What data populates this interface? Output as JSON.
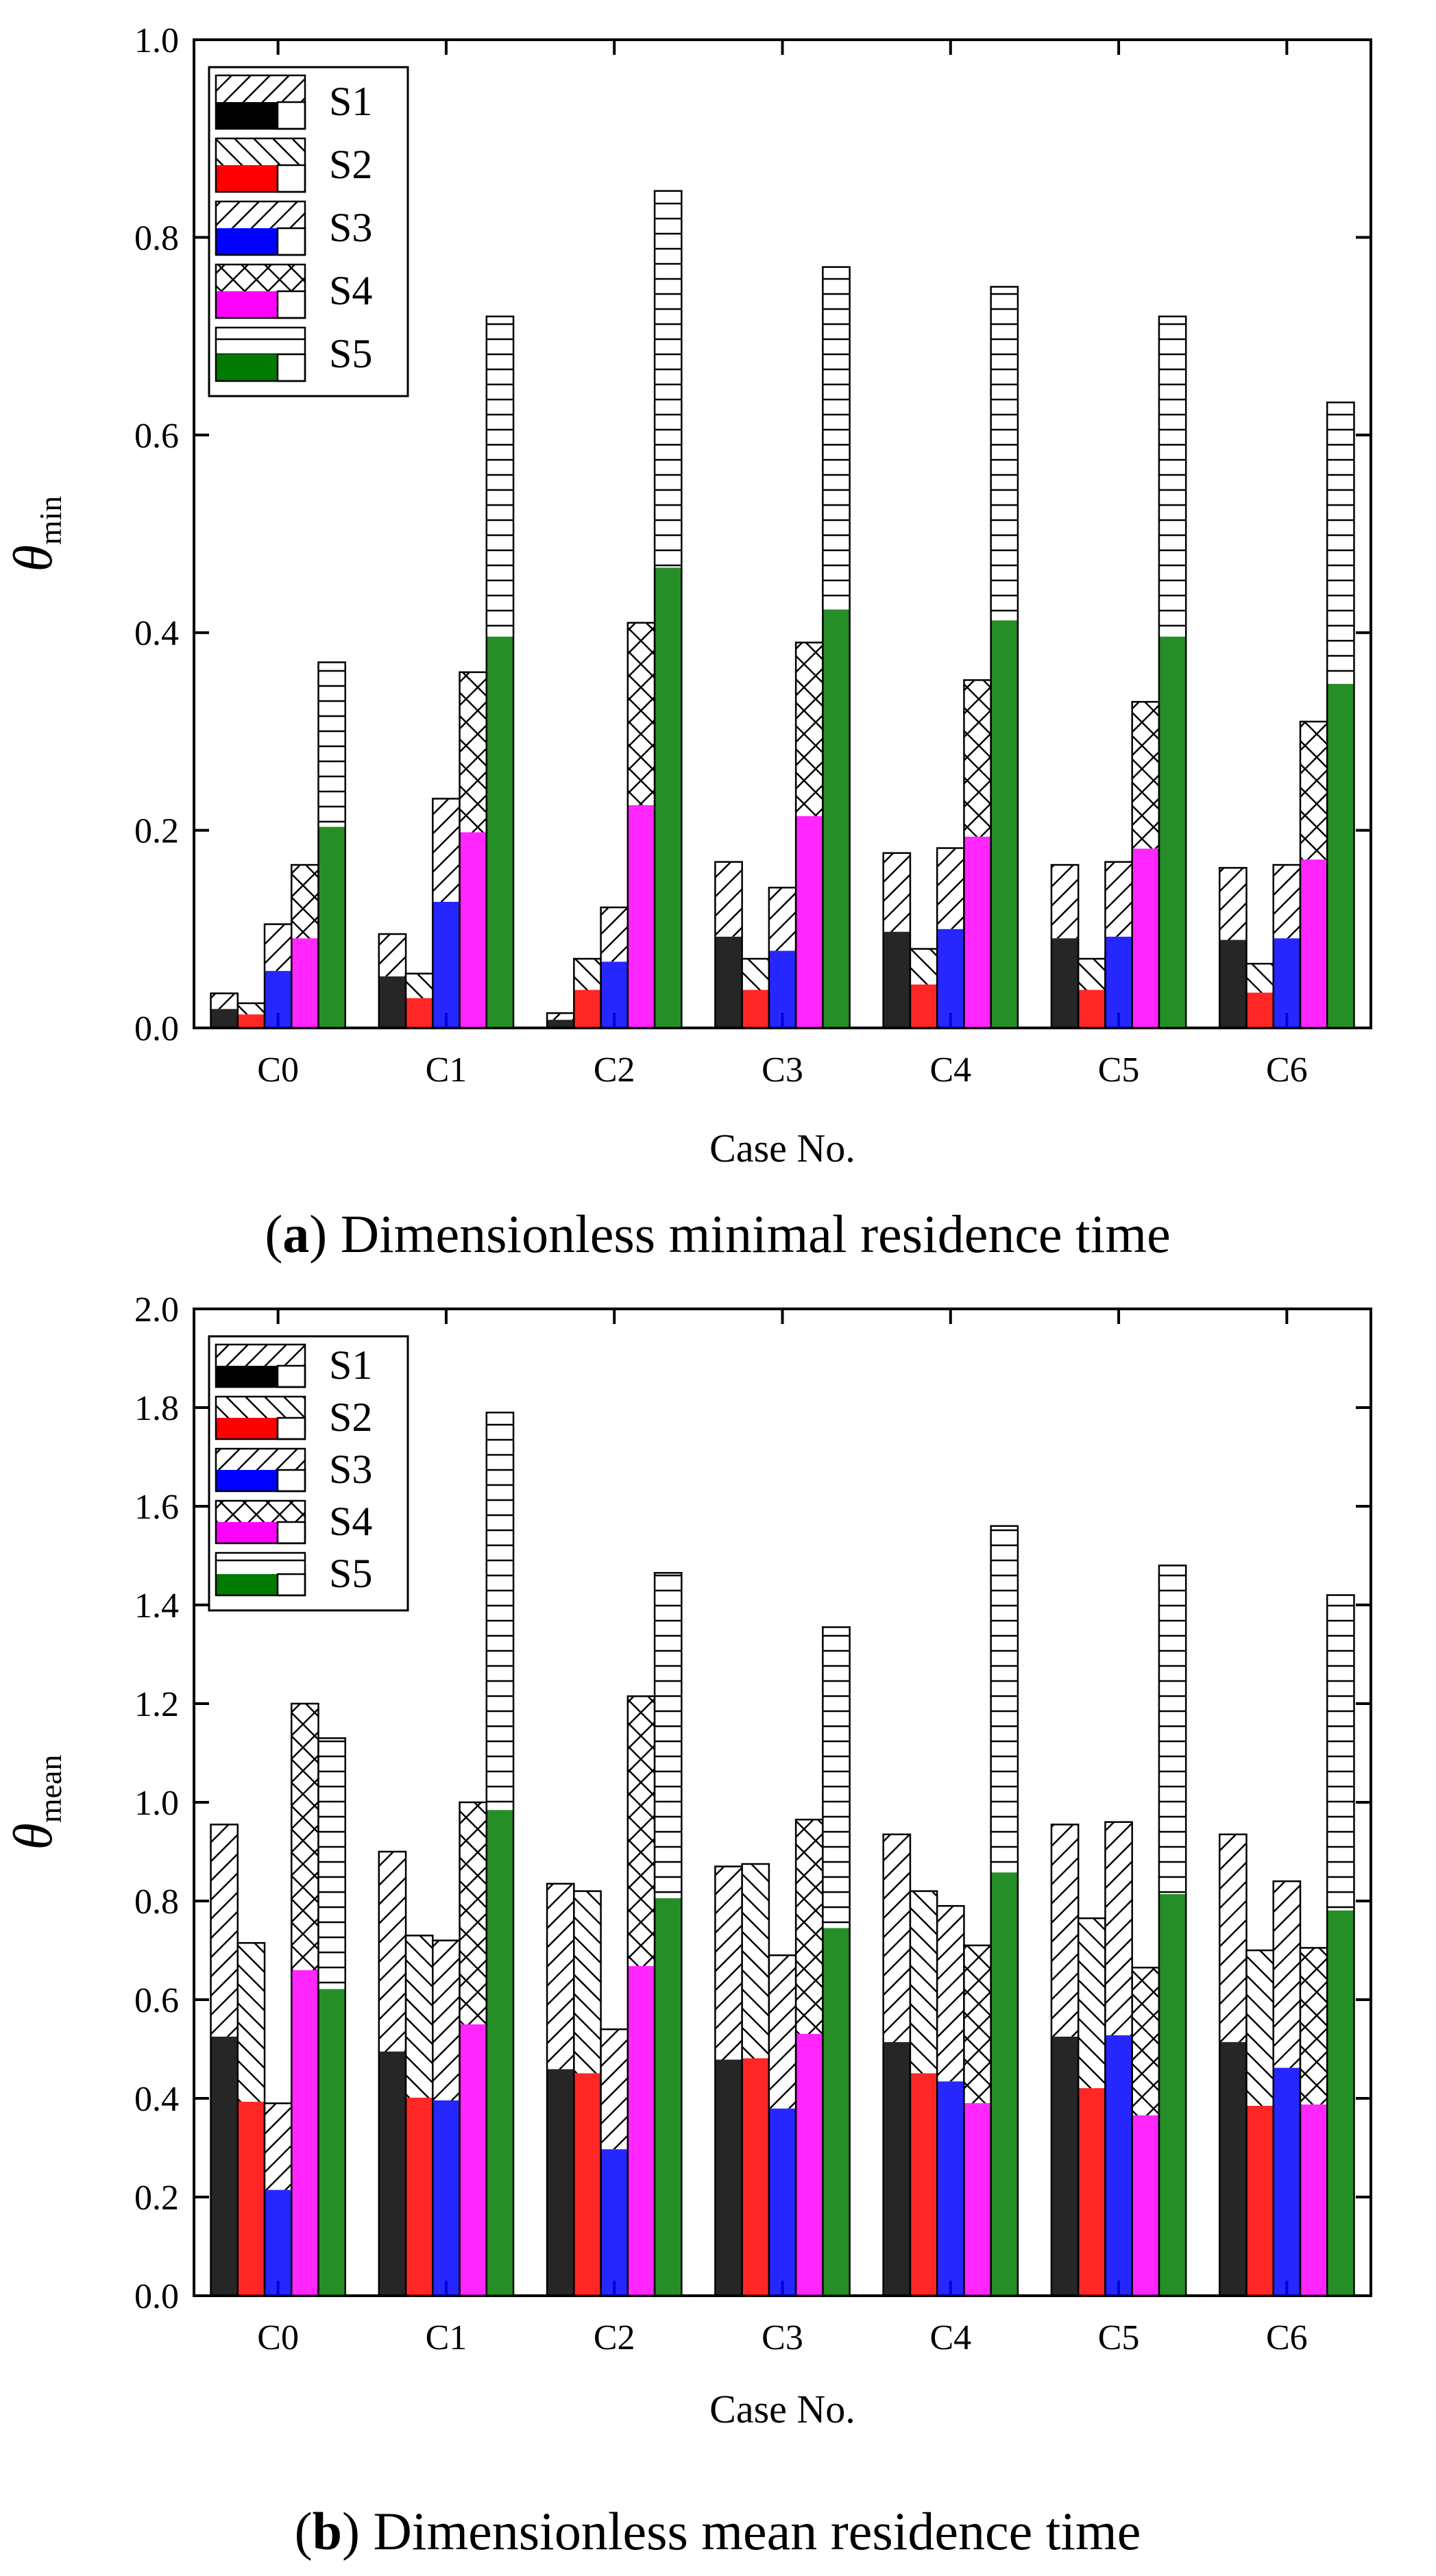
{
  "chart_data": [
    {
      "type": "bar",
      "panel": "a",
      "caption": {
        "label": "a",
        "text": "Dimensionless minimal residence time"
      },
      "ylabel": {
        "symbol": "θ",
        "subscript": "min"
      },
      "xlabel": "Case No.",
      "ylim": [
        0.0,
        1.0
      ],
      "yticks": [
        "0.0",
        "0.2",
        "0.4",
        "0.6",
        "0.8",
        "1.0"
      ],
      "legend_position": "top-left",
      "categories": [
        "C0",
        "C1",
        "C2",
        "C3",
        "C4",
        "C5",
        "C6"
      ],
      "series": [
        {
          "name": "S1",
          "values": [
            0.035,
            0.095,
            0.015,
            0.168,
            0.177,
            0.165,
            0.162
          ]
        },
        {
          "name": "S2",
          "values": [
            0.025,
            0.055,
            0.07,
            0.07,
            0.08,
            0.07,
            0.065
          ]
        },
        {
          "name": "S3",
          "values": [
            0.105,
            0.232,
            0.122,
            0.142,
            0.182,
            0.168,
            0.165
          ]
        },
        {
          "name": "S4",
          "values": [
            0.165,
            0.36,
            0.41,
            0.39,
            0.352,
            0.33,
            0.31
          ]
        },
        {
          "name": "S5",
          "values": [
            0.37,
            0.72,
            0.847,
            0.77,
            0.75,
            0.72,
            0.633
          ]
        }
      ]
    },
    {
      "type": "bar",
      "panel": "b",
      "caption": {
        "label": "b",
        "text": "Dimensionless mean residence time"
      },
      "ylabel": {
        "symbol": "θ",
        "subscript": "mean"
      },
      "xlabel": "Case No.",
      "ylim": [
        0.0,
        2.0
      ],
      "yticks": [
        "0.0",
        "0.2",
        "0.4",
        "0.6",
        "0.8",
        "1.0",
        "1.2",
        "1.4",
        "1.6",
        "1.8",
        "2.0"
      ],
      "legend_position": "top-left",
      "categories": [
        "C0",
        "C1",
        "C2",
        "C3",
        "C4",
        "C5",
        "C6"
      ],
      "series": [
        {
          "name": "S1",
          "values": [
            0.955,
            0.9,
            0.835,
            0.87,
            0.935,
            0.955,
            0.935
          ]
        },
        {
          "name": "S2",
          "values": [
            0.715,
            0.73,
            0.82,
            0.875,
            0.82,
            0.765,
            0.7
          ]
        },
        {
          "name": "S3",
          "values": [
            0.39,
            0.72,
            0.54,
            0.69,
            0.79,
            0.96,
            0.84
          ]
        },
        {
          "name": "S4",
          "values": [
            1.2,
            1.0,
            1.215,
            0.965,
            0.71,
            0.665,
            0.705
          ]
        },
        {
          "name": "S5",
          "values": [
            1.13,
            1.79,
            1.465,
            1.355,
            1.56,
            1.48,
            1.42
          ]
        }
      ]
    }
  ],
  "colors": {
    "S1": "#000000",
    "S2": "#ff0000",
    "S3": "#0000ff",
    "S4": "#ff00ff",
    "S5": "#007a00"
  }
}
